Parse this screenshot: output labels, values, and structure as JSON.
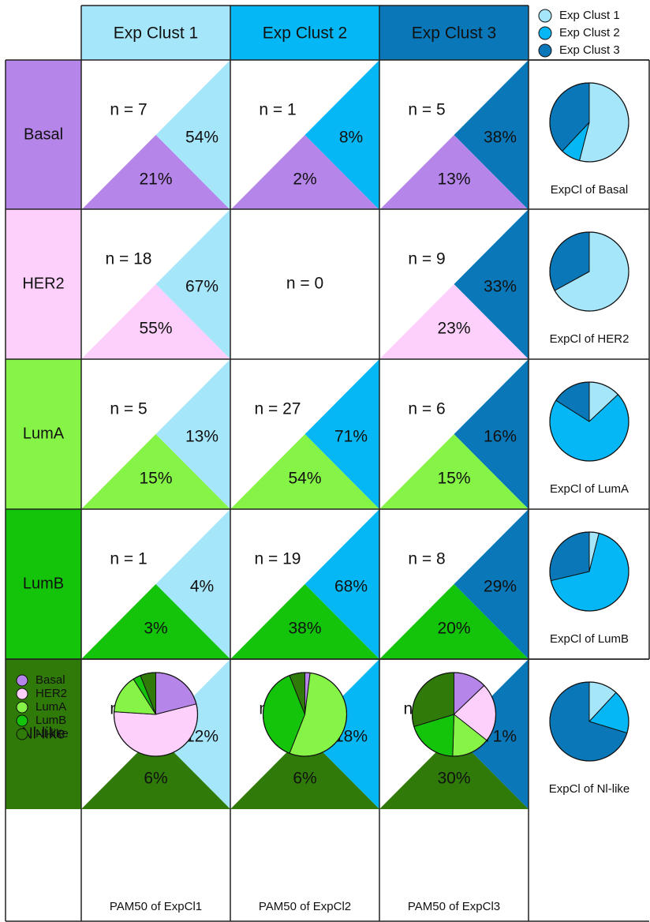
{
  "figure": {
    "col_headers": [
      "Exp Clust 1",
      "Exp Clust 2",
      "Exp Clust 3"
    ],
    "row_headers": [
      "Basal",
      "HER2",
      "LumA",
      "LumB",
      "Nl-like"
    ],
    "exp_legend": [
      "Exp Clust 1",
      "Exp Clust 2",
      "Exp Clust 3"
    ],
    "pam_legend": [
      "Basal",
      "HER2",
      "LumA",
      "LumB",
      "Nl-like"
    ],
    "row_pie_captions": [
      "ExpCl of Basal",
      "ExpCl of HER2",
      "ExpCl of LumA",
      "ExpCl of LumB",
      "ExpCl of Nl-like"
    ],
    "col_pie_captions": [
      "PAM50 of ExpCl1",
      "PAM50 of ExpCl2",
      "PAM50 of ExpCl3"
    ]
  },
  "colors": {
    "exp": [
      "#a6e6fa",
      "#05b7f4",
      "#0a77b8"
    ],
    "pam": [
      "#b685ea",
      "#fdd0fc",
      "#86f446",
      "#13c40a",
      "#2f7a08"
    ]
  },
  "chart_data": {
    "type": "table",
    "cells": [
      {
        "n": "n = 7",
        "exp_pct": "54%",
        "pam_pct": "21%"
      },
      {
        "n": "n = 1",
        "exp_pct": "8%",
        "pam_pct": "2%"
      },
      {
        "n": "n = 5",
        "exp_pct": "38%",
        "pam_pct": "13%"
      },
      {
        "n": "n = 18",
        "exp_pct": "67%",
        "pam_pct": "55%"
      },
      {
        "n": "n = 0",
        "exp_pct": "",
        "pam_pct": ""
      },
      {
        "n": "n = 9",
        "exp_pct": "33%",
        "pam_pct": "23%"
      },
      {
        "n": "n = 5",
        "exp_pct": "13%",
        "pam_pct": "15%"
      },
      {
        "n": "n = 27",
        "exp_pct": "71%",
        "pam_pct": "54%"
      },
      {
        "n": "n = 6",
        "exp_pct": "16%",
        "pam_pct": "15%"
      },
      {
        "n": "n = 1",
        "exp_pct": "4%",
        "pam_pct": "3%"
      },
      {
        "n": "n = 19",
        "exp_pct": "68%",
        "pam_pct": "38%"
      },
      {
        "n": "n = 8",
        "exp_pct": "29%",
        "pam_pct": "20%"
      },
      {
        "n": "n = 2",
        "exp_pct": "12%",
        "pam_pct": "6%"
      },
      {
        "n": "n = 3",
        "exp_pct": "18%",
        "pam_pct": "6%"
      },
      {
        "n": "n = 12",
        "exp_pct": "71%",
        "pam_pct": "30%"
      }
    ],
    "row_pies": [
      [
        54,
        8,
        38
      ],
      [
        67,
        0,
        33
      ],
      [
        13,
        71,
        16
      ],
      [
        4,
        68,
        29
      ],
      [
        12,
        18,
        71
      ]
    ],
    "col_pies": [
      [
        21,
        55,
        15,
        3,
        6
      ],
      [
        2,
        0,
        54,
        38,
        6
      ],
      [
        13,
        23,
        15,
        20,
        30
      ]
    ]
  }
}
